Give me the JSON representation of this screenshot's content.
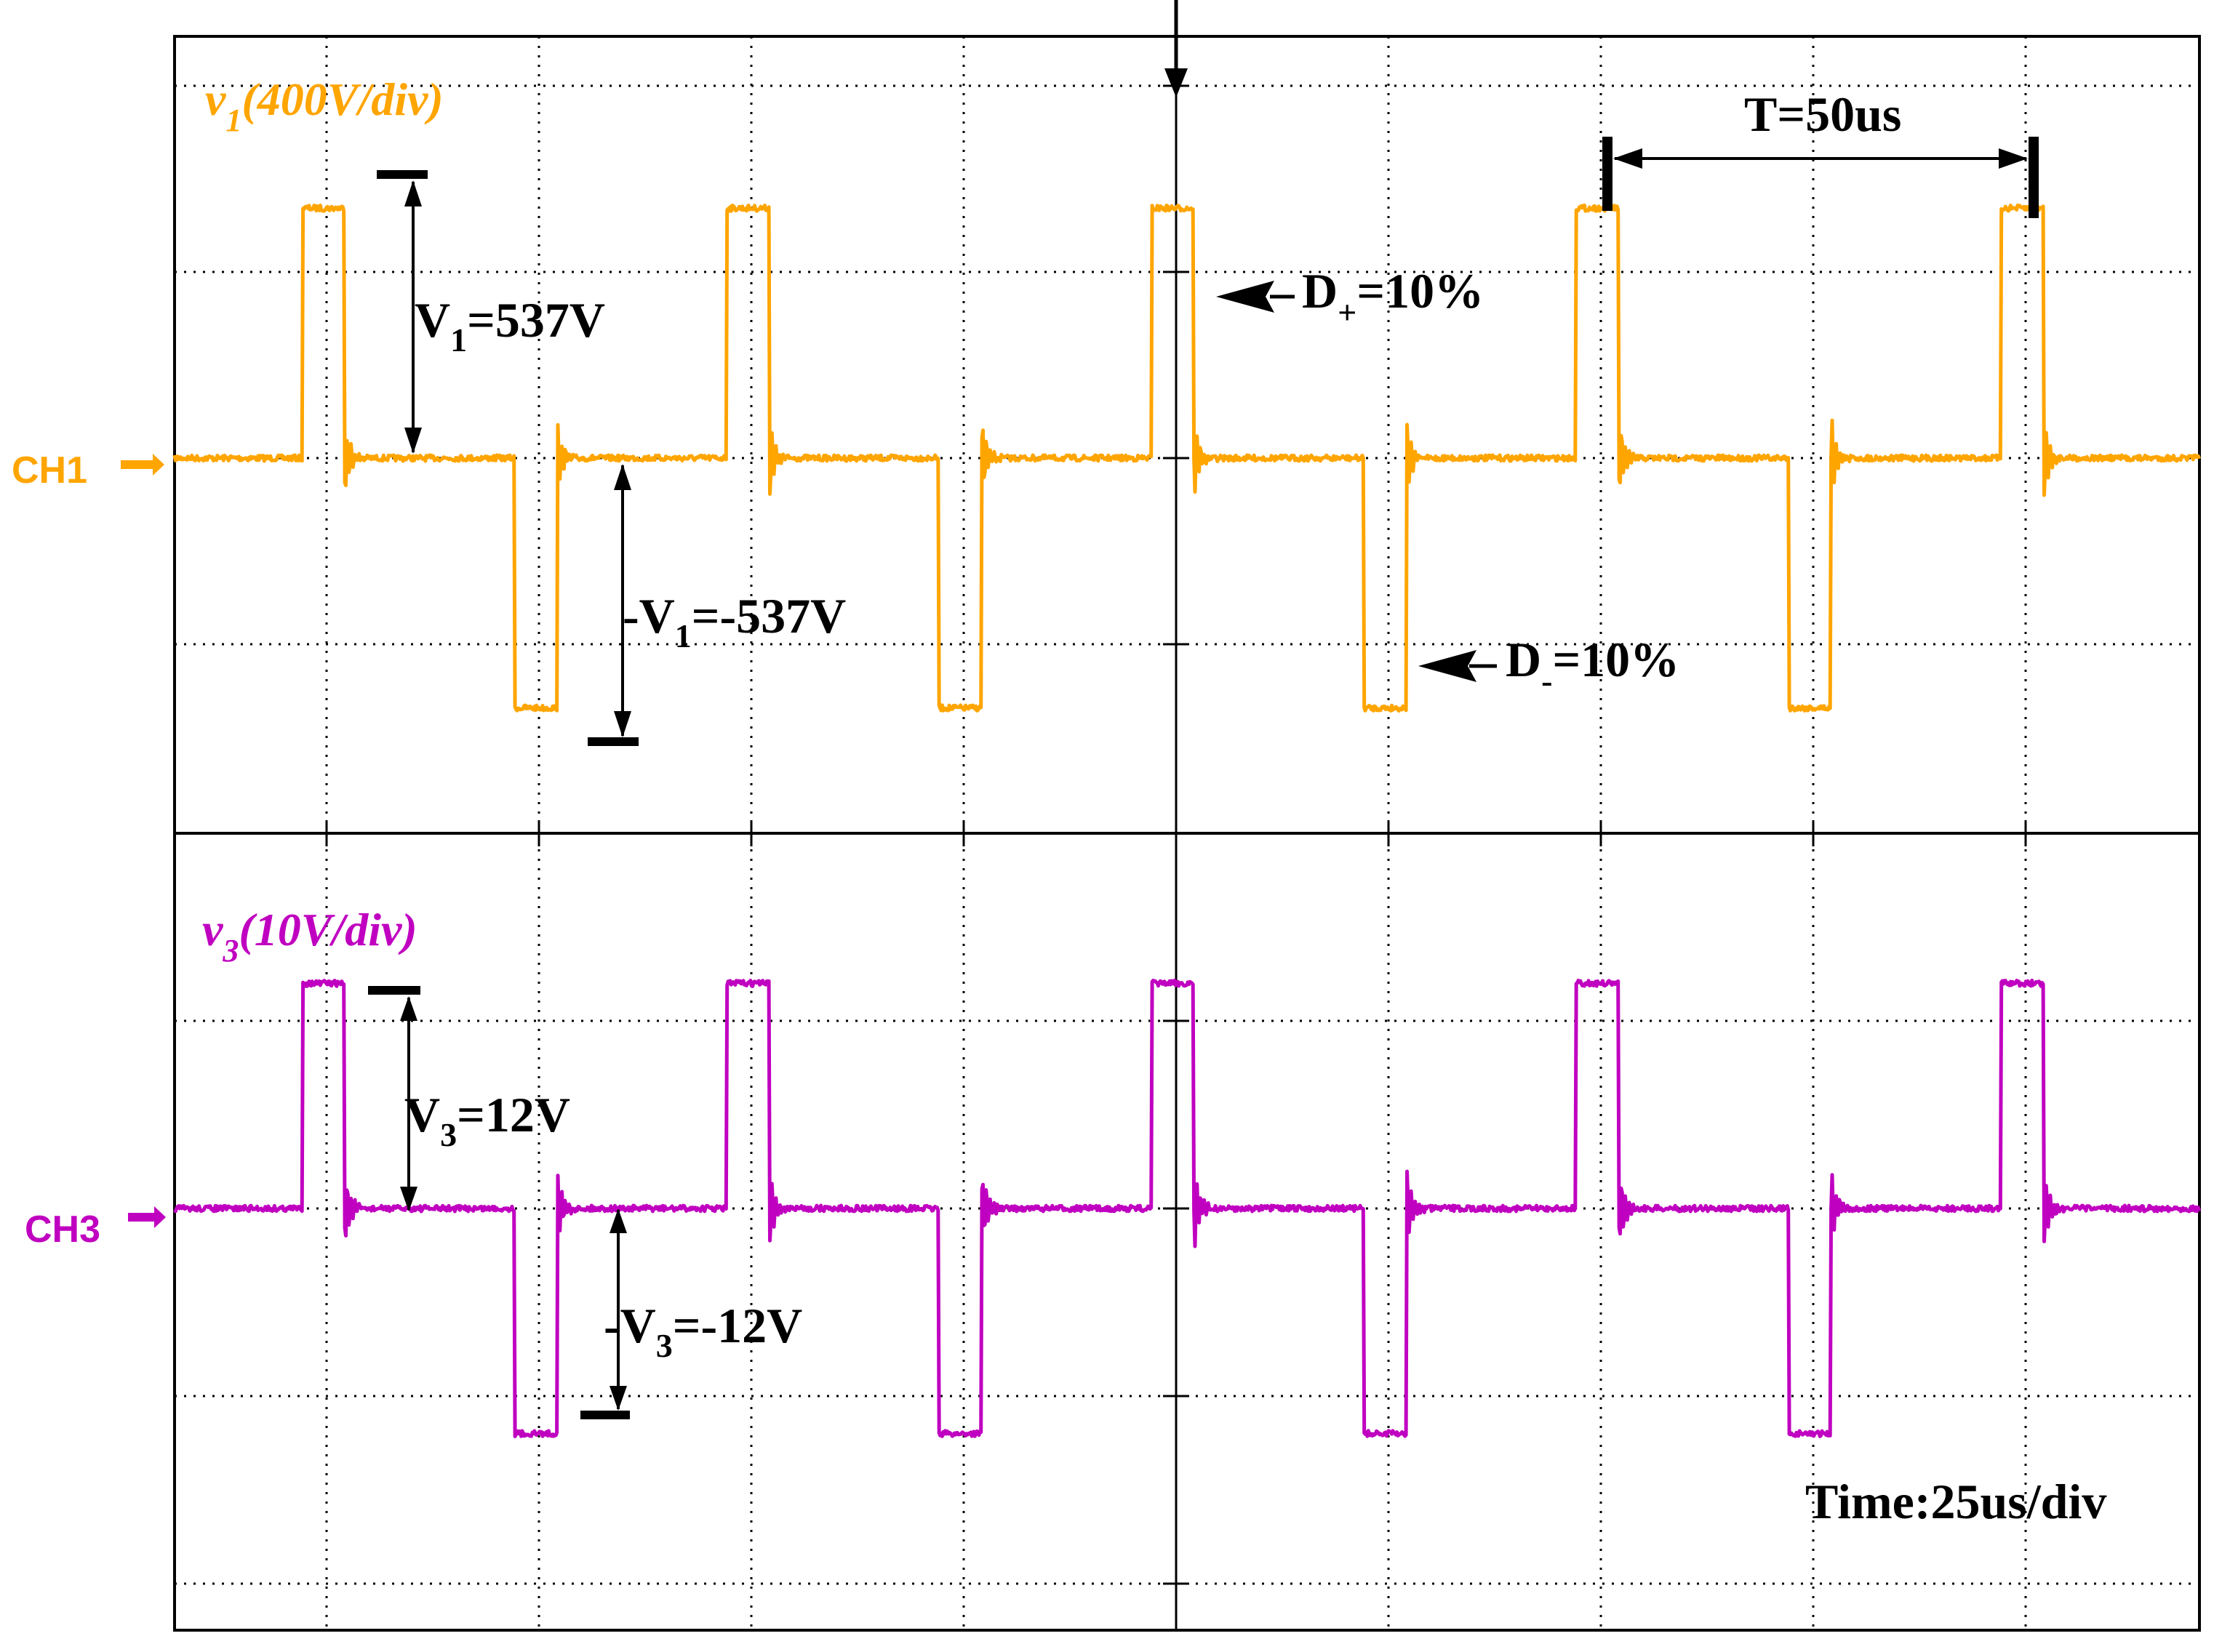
{
  "chart_data": [
    {
      "type": "line",
      "title": "v1(400V/div)",
      "title_main": "v",
      "title_sub": "1",
      "title_rest": "(400V/div)",
      "channel_label": "CH1",
      "color": "#FFA500",
      "volts_per_div": 400,
      "unit": "V",
      "series": [
        {
          "name": "v1",
          "amplitude": 537
        }
      ],
      "x_unit": "us",
      "period_us": 50,
      "first_rising_edge_us": 15,
      "pulse_width_us": 5,
      "duty_positive": 0.1,
      "duty_negative": 0.1,
      "annotations": {
        "vpos": {
          "main": "V",
          "sub": "1",
          "rest": "=537V"
        },
        "vneg": {
          "main": "-V",
          "sub": "1",
          "rest": "=-537V"
        },
        "dpos": {
          "main": "D",
          "sub": "+",
          "rest": "=10%"
        },
        "dneg": {
          "main": "D",
          "sub": "-",
          "rest": "=10%"
        },
        "period": "T=50us"
      }
    },
    {
      "type": "line",
      "title": "v3(10V/div)",
      "title_main": "v",
      "title_sub": "3",
      "title_rest": "(10V/div)",
      "channel_label": "CH3",
      "color": "#C000C0",
      "volts_per_div": 10,
      "unit": "V",
      "series": [
        {
          "name": "v3",
          "amplitude": 12
        }
      ],
      "x_unit": "us",
      "period_us": 50,
      "first_rising_edge_us": 15,
      "pulse_width_us": 5,
      "annotations": {
        "vpos": {
          "main": "V",
          "sub": "3",
          "rest": "=12V"
        },
        "vneg": {
          "main": "-V",
          "sub": "3",
          "rest": "=-12V"
        }
      }
    }
  ],
  "timebase": {
    "label": "Time:25us/div",
    "us_per_div": 25,
    "x_range_us": [
      0,
      237.5
    ]
  },
  "trigger_icon": "trigger-arrow-down-icon",
  "grid": {
    "on": true,
    "style": "dotted"
  }
}
